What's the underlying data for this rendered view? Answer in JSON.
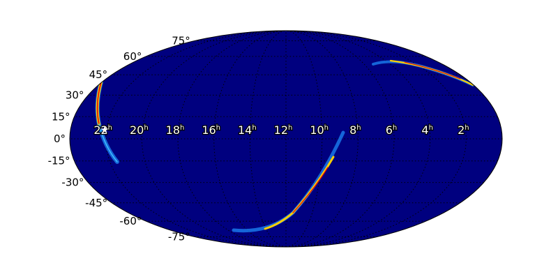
{
  "chart_data": {
    "type": "heatmap",
    "projection": "mollweide",
    "background_color": "#00007f",
    "colormap": "jet",
    "grid": true,
    "grid_style": "dotted",
    "center_ra_hours": 12,
    "ra_tick_labels": [
      {
        "hours": 22,
        "label": "22",
        "unit": "h"
      },
      {
        "hours": 20,
        "label": "20",
        "unit": "h"
      },
      {
        "hours": 18,
        "label": "18",
        "unit": "h"
      },
      {
        "hours": 16,
        "label": "16",
        "unit": "h"
      },
      {
        "hours": 14,
        "label": "14",
        "unit": "h"
      },
      {
        "hours": 12,
        "label": "12",
        "unit": "h"
      },
      {
        "hours": 10,
        "label": "10",
        "unit": "h"
      },
      {
        "hours": 8,
        "label": "8",
        "unit": "h"
      },
      {
        "hours": 6,
        "label": "6",
        "unit": "h"
      },
      {
        "hours": 4,
        "label": "4",
        "unit": "h"
      },
      {
        "hours": 2,
        "label": "2",
        "unit": "h"
      }
    ],
    "dec_tick_labels": [
      {
        "deg": 75,
        "label": "75°"
      },
      {
        "deg": 60,
        "label": "60°"
      },
      {
        "deg": 45,
        "label": "45°"
      },
      {
        "deg": 30,
        "label": "30°"
      },
      {
        "deg": 15,
        "label": "15°"
      },
      {
        "deg": 0,
        "label": "0°"
      },
      {
        "deg": -15,
        "label": "-15°"
      },
      {
        "deg": -30,
        "label": "-30°"
      },
      {
        "deg": -45,
        "label": "-45°"
      },
      {
        "deg": -60,
        "label": "-60°"
      },
      {
        "deg": -75,
        "label": "-75°"
      }
    ],
    "marker": {
      "shape": "star",
      "color": "#ffffff",
      "ra_hours": 22.1,
      "dec_deg": 6
    }
  }
}
